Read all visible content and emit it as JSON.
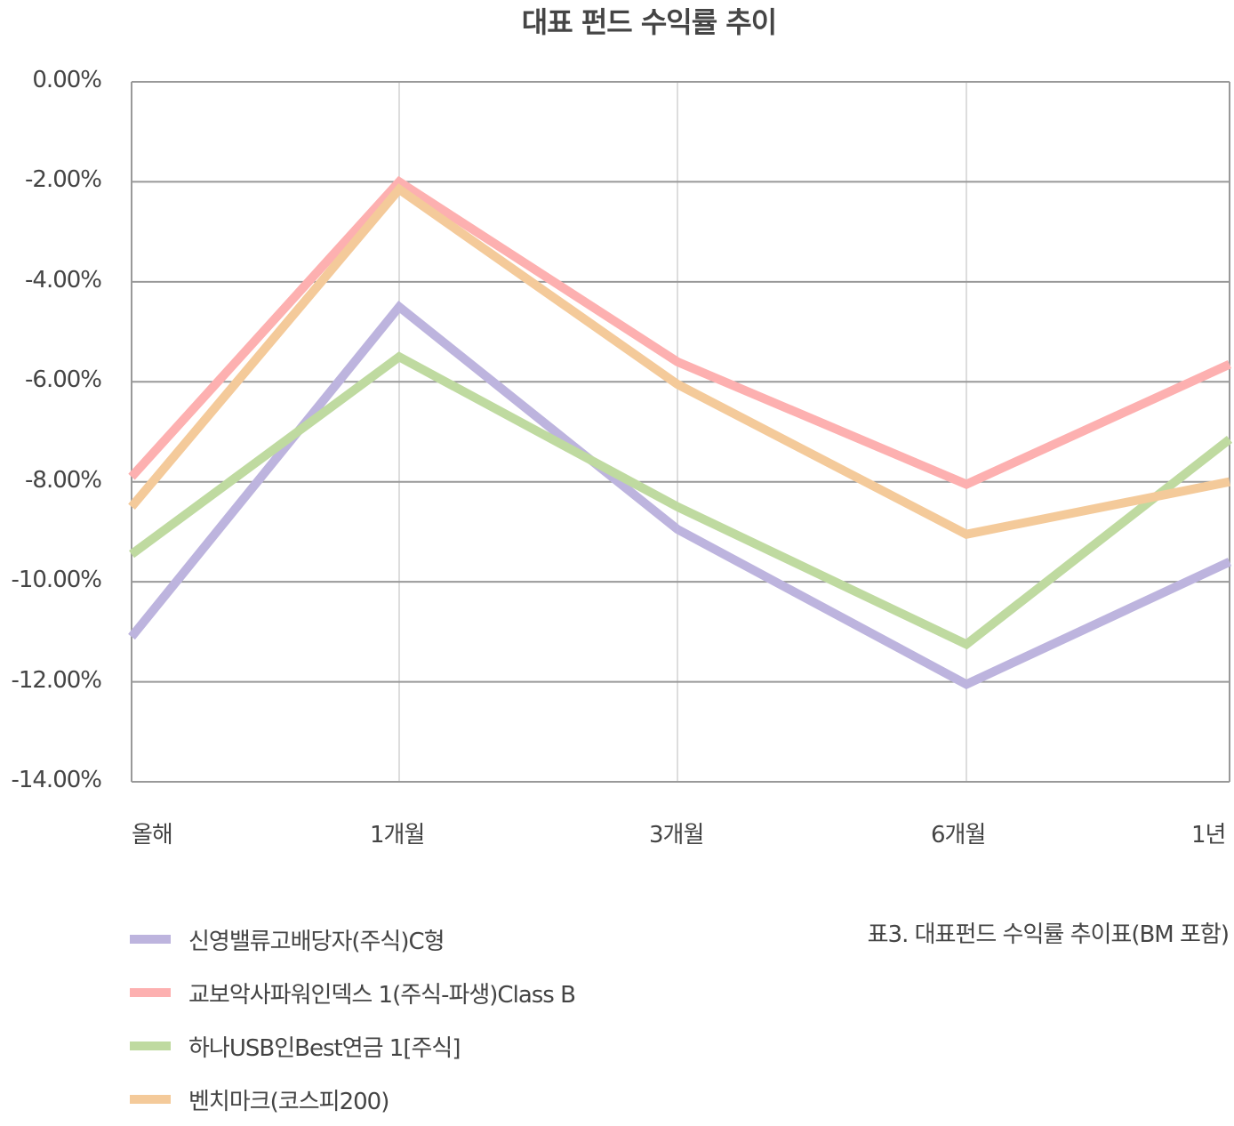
{
  "title": "대표 펀드 수익률 추이",
  "caption": "표3. 대표펀드 수익률 추이표(BM 포함)",
  "y_ticks": [
    "0.00%",
    "-2.00%",
    "-4.00%",
    "-6.00%",
    "-8.00%",
    "-10.00%",
    "-12.00%",
    "-14.00%"
  ],
  "x_ticks": [
    "올해",
    "1개월",
    "3개월",
    "6개월",
    "1년"
  ],
  "legend": [
    {
      "label": "신영밸류고배당자(주식)C형",
      "color": "#bdb4de"
    },
    {
      "label": "교보악사파워인덱스 1(주식-파생)Class B",
      "color": "#fdb0b0"
    },
    {
      "label": "하나USB인Best연금 1[주식]",
      "color": "#bfdaa0"
    },
    {
      "label": "벤치마크(코스피200)",
      "color": "#f4ca9a"
    }
  ],
  "chart_data": {
    "type": "line",
    "title": "대표 펀드 수익률 추이",
    "xlabel": "",
    "ylabel": "",
    "categories": [
      "올해",
      "1개월",
      "3개월",
      "6개월",
      "1년"
    ],
    "ylim": [
      -14,
      0
    ],
    "y_tick_step": 2,
    "y_format": "percent",
    "grid": {
      "horizontal": true,
      "vertical": true
    },
    "legend_position": "bottom-left",
    "series": [
      {
        "name": "신영밸류고배당자(주식)C형",
        "color": "#bdb4de",
        "values": [
          -11.1,
          -4.5,
          -8.95,
          -12.05,
          -9.6
        ]
      },
      {
        "name": "교보악사파워인덱스 1(주식-파생)Class B",
        "color": "#fdb0b0",
        "values": [
          -7.9,
          -2.0,
          -5.6,
          -8.05,
          -5.65
        ]
      },
      {
        "name": "하나USB인Best연금 1[주식]",
        "color": "#bfdaa0",
        "values": [
          -9.45,
          -5.5,
          -8.5,
          -11.25,
          -7.15
        ]
      },
      {
        "name": "벤치마크(코스피200)",
        "color": "#f4ca9a",
        "values": [
          -8.5,
          -2.15,
          -6.05,
          -9.05,
          -8.0
        ]
      }
    ],
    "annotation": "표3. 대표펀드 수익률 추이표(BM 포함)"
  }
}
